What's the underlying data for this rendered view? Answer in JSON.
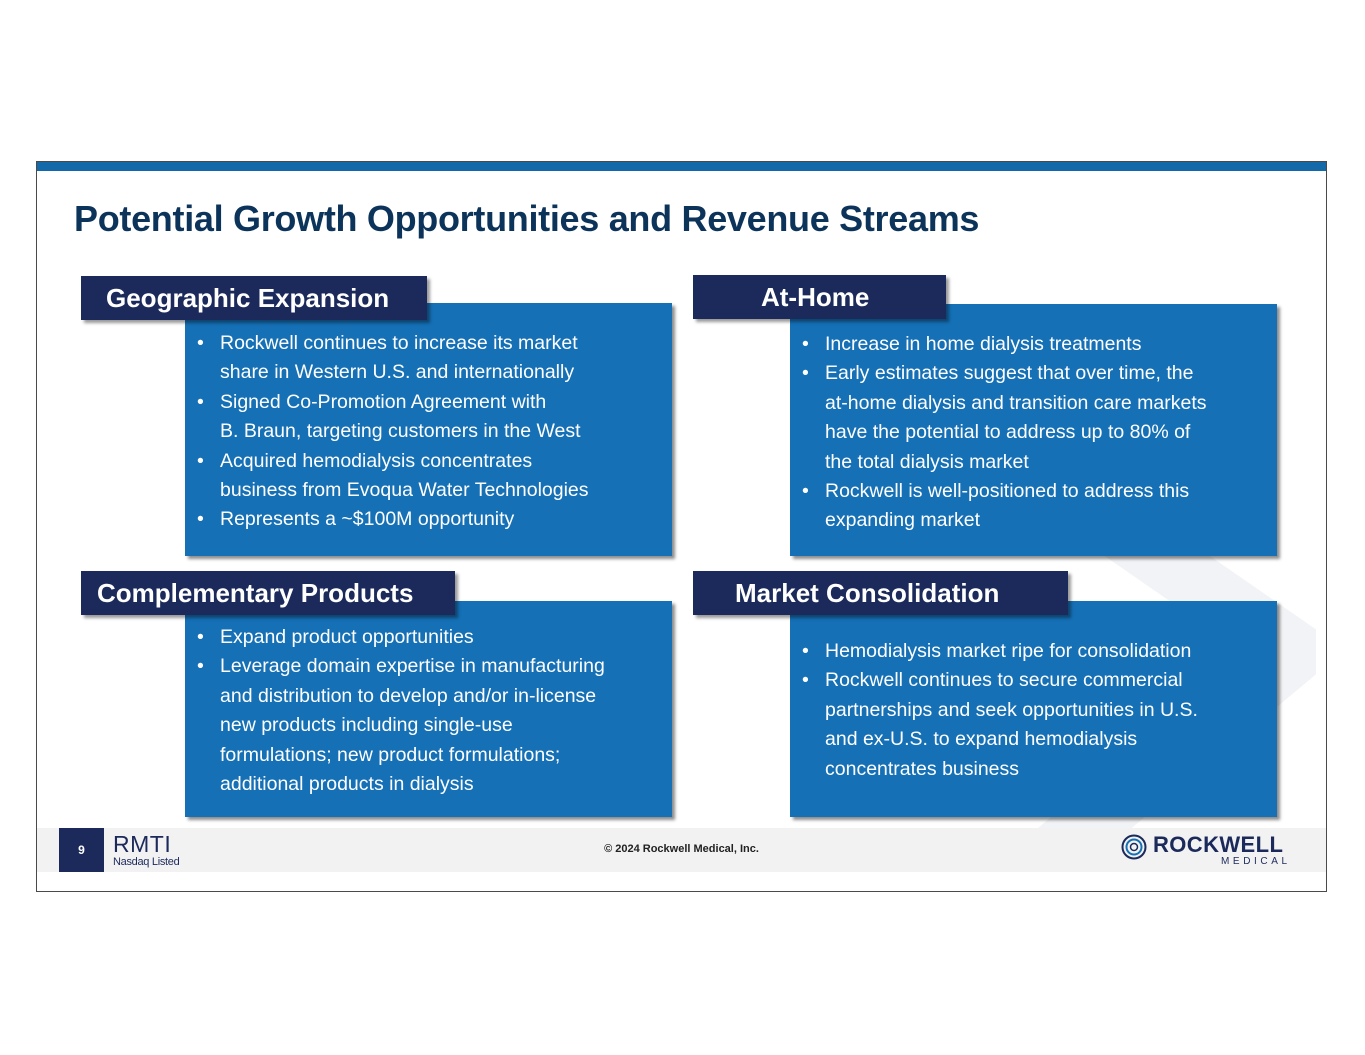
{
  "slide": {
    "title": "Potential Growth Opportunities and Revenue Streams",
    "page_number": "9",
    "copyright": "© 2024 Rockwell Medical, Inc.",
    "colors": {
      "accent_bar": "#1469a8",
      "box_fill": "#1570b6",
      "header_fill": "#1b2a5b",
      "title": "#0c3359"
    }
  },
  "sections": {
    "geographic": {
      "header": "Geographic Expansion",
      "bullets": [
        [
          "Rockwell continues to increase its market",
          "share in Western U.S. and internationally"
        ],
        [
          "Signed Co-Promotion Agreement with",
          "B. Braun, targeting customers in the West"
        ],
        [
          "Acquired hemodialysis concentrates",
          "business from Evoqua Water Technologies"
        ],
        [
          "Represents a ~$100M opportunity"
        ]
      ]
    },
    "at_home": {
      "header": "At-Home",
      "bullets": [
        [
          "Increase in home dialysis treatments"
        ],
        [
          "Early estimates suggest that over time, the",
          "at-home dialysis and transition care markets",
          "have the potential to address up to 80% of",
          "the total dialysis market"
        ],
        [
          "Rockwell is well-positioned to address this",
          "expanding market"
        ]
      ]
    },
    "complementary": {
      "header": "Complementary Products",
      "bullets": [
        [
          "Expand product opportunities"
        ],
        [
          "Leverage domain expertise in manufacturing",
          "and distribution to develop and/or in-license",
          "new products including single-use",
          "formulations; new product formulations;",
          "additional products in dialysis"
        ]
      ]
    },
    "consolidation": {
      "header": "Market Consolidation",
      "bullets": [
        [
          "Hemodialysis market ripe for consolidation"
        ],
        [
          "Rockwell continues to secure commercial",
          "partnerships and seek opportunities in U.S.",
          "and ex-U.S. to expand hemodialysis",
          "concentrates business"
        ]
      ]
    }
  },
  "footer": {
    "ticker": "RMTI",
    "ticker_sub": "Nasdaq Listed",
    "logo_name": "ROCKWELL",
    "logo_sub": "MEDICAL",
    "logo_icon": "rockwell-ring-logo-icon"
  }
}
